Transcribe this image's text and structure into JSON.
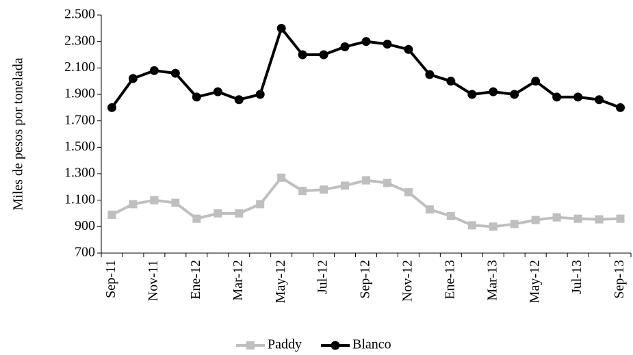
{
  "chart_data": {
    "type": "line",
    "y_label": "Miles  de pesos por tonelada",
    "categories": [
      "Sep-11",
      null,
      "Nov-11",
      null,
      "Ene-12",
      null,
      "Mar-12",
      null,
      "May-12",
      null,
      "Jul-12",
      null,
      "Sep-12",
      null,
      "Nov-12",
      null,
      "Ene-13",
      null,
      "Mar-13",
      null,
      "May-12",
      null,
      "Jul-13",
      null,
      "Sep-13"
    ],
    "series": [
      {
        "name": "Paddy",
        "color": "#bfbfbf",
        "marker": "square",
        "values": [
          990,
          1070,
          1100,
          1080,
          960,
          1000,
          1000,
          1070,
          1270,
          1170,
          1180,
          1210,
          1250,
          1230,
          1160,
          1030,
          980,
          910,
          900,
          920,
          950,
          970,
          960,
          955,
          960
        ]
      },
      {
        "name": "Blanco",
        "color": "#000000",
        "marker": "circle",
        "values": [
          1800,
          2020,
          2080,
          2060,
          1880,
          1920,
          1860,
          1900,
          2400,
          2200,
          2200,
          2260,
          2300,
          2280,
          2240,
          2050,
          2000,
          1900,
          1920,
          1900,
          2000,
          1880,
          1880,
          1860,
          1800
        ]
      }
    ],
    "ylim": [
      700,
      2500
    ],
    "yticks": [
      700,
      900,
      {
        "value": 1100,
        "label": "1.100"
      },
      {
        "value": 1300,
        "label": "1.300"
      },
      {
        "value": 1500,
        "label": "1.500"
      },
      {
        "value": 1700,
        "label": "1.700"
      },
      {
        "value": 1900,
        "label": "1.900"
      },
      {
        "value": 2100,
        "label": "2.100"
      },
      {
        "value": 2300,
        "label": "2.300"
      },
      {
        "value": 2500,
        "label": "2.500"
      }
    ],
    "grid": false
  }
}
